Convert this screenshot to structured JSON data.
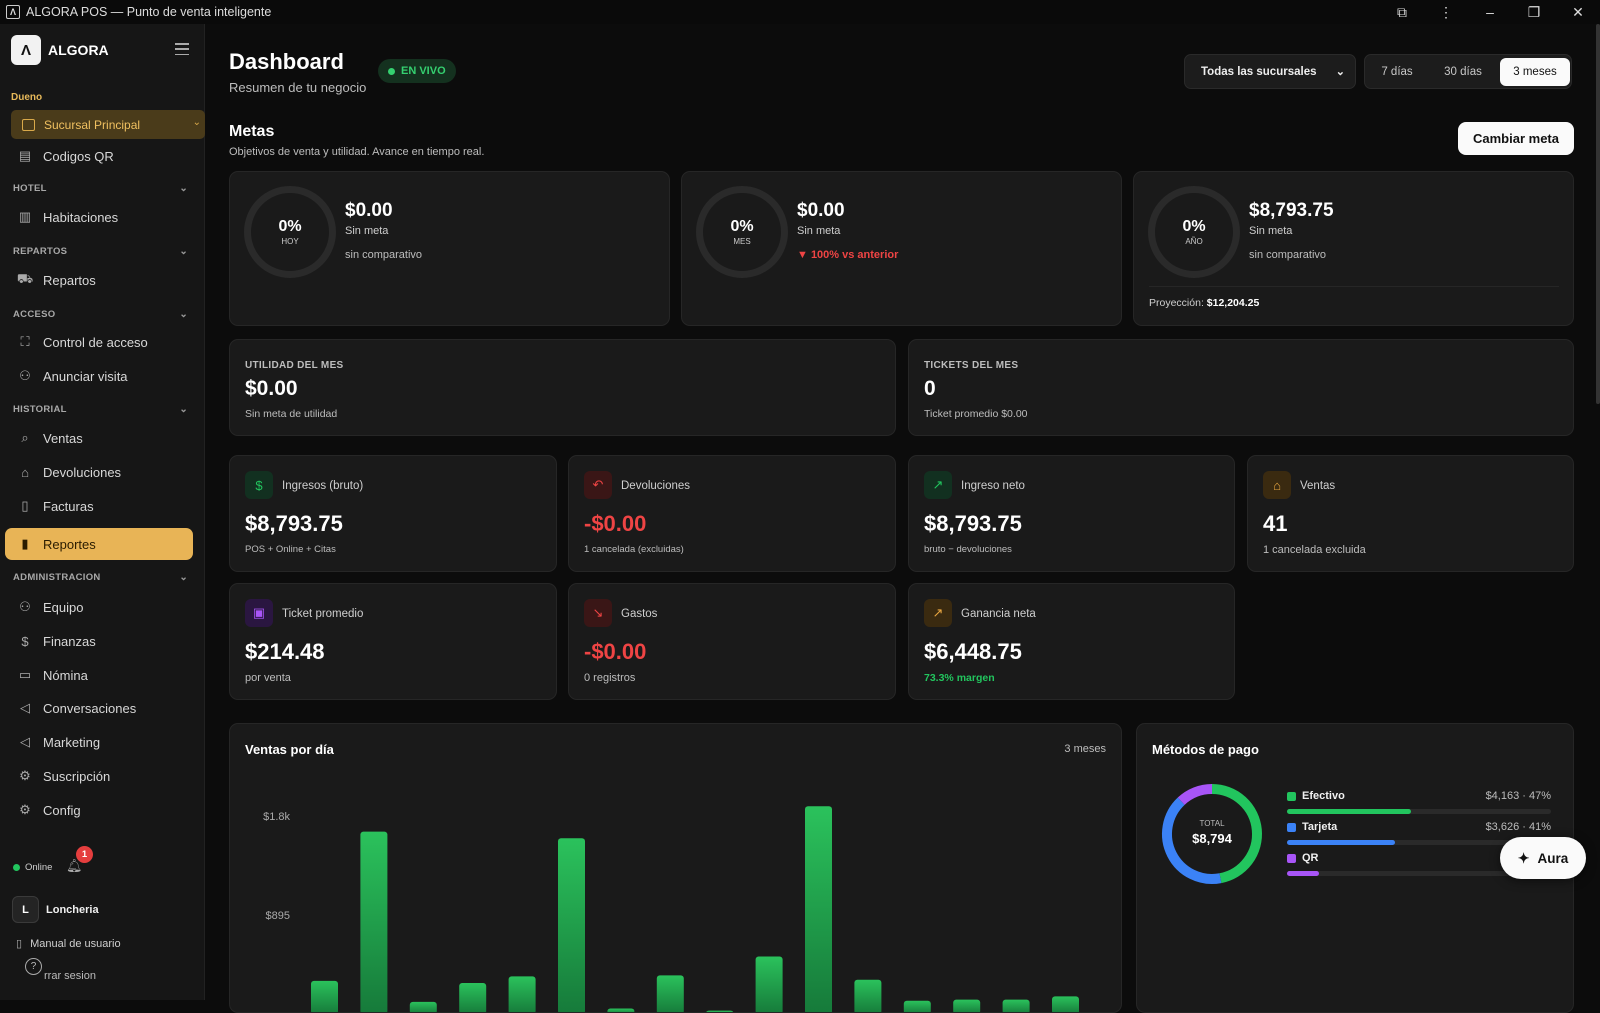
{
  "window": {
    "title": "ALGORA POS — Punto de venta inteligente",
    "app_icon_glyph": "Λ"
  },
  "sidebar": {
    "brand": "ALGORA",
    "logo_glyph": "Λ",
    "role_label": "Dueno",
    "branch_selector": "Sucursal Principal",
    "top_items": [
      {
        "label": "Codigos QR",
        "icon": "qr-icon"
      }
    ],
    "sections": [
      {
        "title": "HOTEL",
        "items": [
          {
            "label": "Habitaciones",
            "icon": "building-icon"
          }
        ]
      },
      {
        "title": "REPARTOS",
        "items": [
          {
            "label": "Repartos",
            "icon": "truck-icon"
          }
        ]
      },
      {
        "title": "ACCESO",
        "items": [
          {
            "label": "Control de acceso",
            "icon": "scan-icon"
          },
          {
            "label": "Anunciar visita",
            "icon": "users-icon"
          }
        ]
      },
      {
        "title": "HISTORIAL",
        "items": [
          {
            "label": "Ventas",
            "icon": "search-icon"
          },
          {
            "label": "Devoluciones",
            "icon": "bag-icon"
          },
          {
            "label": "Facturas",
            "icon": "file-icon"
          },
          {
            "label": "Reportes",
            "icon": "chart-icon"
          }
        ]
      },
      {
        "title": "ADMINISTRACION",
        "items": [
          {
            "label": "Equipo",
            "icon": "users-icon"
          },
          {
            "label": "Finanzas",
            "icon": "dollar-icon"
          },
          {
            "label": "Nómina",
            "icon": "card-icon"
          },
          {
            "label": "Conversaciones",
            "icon": "megaphone-icon"
          },
          {
            "label": "Marketing",
            "icon": "megaphone-icon"
          },
          {
            "label": "Suscripción",
            "icon": "gear-icon"
          },
          {
            "label": "Config",
            "icon": "gear-icon"
          }
        ]
      }
    ],
    "active_item": "Reportes",
    "status": "Online",
    "notification_count": "1",
    "user_initial": "L",
    "user_name": "Loncheria",
    "manual": "Manual de usuario",
    "logout": "rrar sesion"
  },
  "header": {
    "title": "Dashboard",
    "subtitle": "Resumen de tu negocio",
    "live_badge": "EN VIVO",
    "branch_filter": "Todas las sucursales",
    "ranges": [
      "7 días",
      "30 días",
      "3 meses"
    ],
    "selected_range": "3 meses"
  },
  "goals": {
    "title": "Metas",
    "subtitle": "Objetivos de venta y utilidad. Avance en tiempo real.",
    "change_button": "Cambiar meta",
    "cards": [
      {
        "pct": "0%",
        "period": "HOY",
        "amount": "$0.00",
        "meta": "Sin meta",
        "comparison": "sin comparativo"
      },
      {
        "pct": "0%",
        "period": "MES",
        "amount": "$0.00",
        "meta": "Sin meta",
        "comparison": "▼ 100% vs anterior"
      },
      {
        "pct": "0%",
        "period": "AÑO",
        "amount": "$8,793.75",
        "meta": "Sin meta",
        "comparison": "sin comparativo",
        "projection_label": "Proyección:",
        "projection_value": "$12,204.25"
      }
    ]
  },
  "month_stats": [
    {
      "label": "UTILIDAD DEL MES",
      "value": "$0.00",
      "note": "Sin meta de utilidad"
    },
    {
      "label": "TICKETS DEL MES",
      "value": "0",
      "note": "Ticket promedio $0.00"
    }
  ],
  "kpis": [
    {
      "label": "Ingresos (bruto)",
      "value": "$8,793.75",
      "note": "POS + Online + Citas",
      "icon": "dollar-icon",
      "color": "#22c55e"
    },
    {
      "label": "Devoluciones",
      "value": "-$0.00",
      "note": "1 cancelada (excluidas)",
      "icon": "undo-icon",
      "color": "#ef4444"
    },
    {
      "label": "Ingreso neto",
      "value": "$8,793.75",
      "note": "bruto − devoluciones",
      "icon": "trend-up-icon",
      "color": "#22c55e"
    },
    {
      "label": "Ventas",
      "value": "41",
      "note": "1 cancelada excluida",
      "icon": "bag-icon",
      "color": "#e8a640"
    },
    {
      "label": "Ticket promedio",
      "value": "$214.48",
      "note": "por venta",
      "icon": "receipt-icon",
      "color": "#a855f7"
    },
    {
      "label": "Gastos",
      "value": "-$0.00",
      "note": "0 registros",
      "icon": "trend-down-icon",
      "color": "#ef4444"
    },
    {
      "label": "Ganancia neta",
      "value": "$6,448.75",
      "note": "73.3% margen",
      "icon": "trend-up-icon",
      "color": "#e8a640"
    }
  ],
  "sales_chart": {
    "title": "Ventas por día",
    "range": "3 meses"
  },
  "payments": {
    "title": "Métodos de pago",
    "total_label": "TOTAL",
    "total_value": "$8,794",
    "methods": [
      {
        "name": "Efectivo",
        "value": "$4,163 · 47%",
        "share": 0.47,
        "color": "#22c55e"
      },
      {
        "name": "Tarjeta",
        "value": "$3,626 · 41%",
        "share": 0.41,
        "color": "#3b82f6"
      },
      {
        "name": "QR",
        "value": "$",
        "share": 0.12,
        "color": "#a855f7"
      }
    ]
  },
  "aura": {
    "label": "Aura"
  },
  "chart_data": {
    "type": "bar",
    "title": "Ventas por día",
    "y_tick_labels": [
      "$1.8k",
      "$895"
    ],
    "y_ticks": [
      1790,
      895
    ],
    "ylim": [
      0,
      1900
    ],
    "values": [
      300,
      1650,
      110,
      280,
      340,
      1590,
      50,
      350,
      30,
      520,
      1880,
      310,
      120,
      130,
      130,
      160
    ],
    "color": "#22c55e",
    "grid": false
  }
}
